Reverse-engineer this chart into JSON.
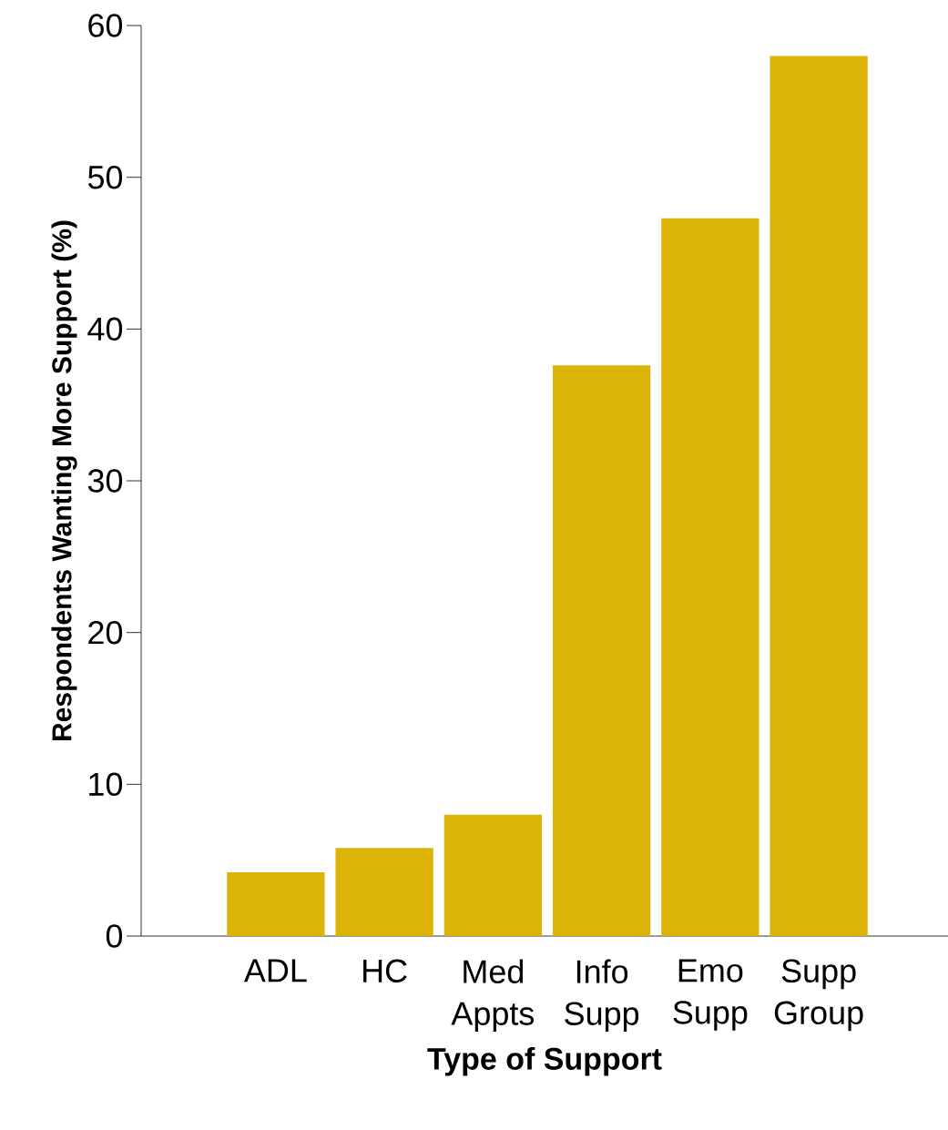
{
  "chart_data": {
    "type": "bar",
    "xlabel": "Type of Support",
    "ylabel": "Respondents Wanting More Support (%)",
    "categories": [
      "ADL",
      "HC",
      "Med Appts",
      "Info Supp",
      "Emo Supp",
      "Supp Group"
    ],
    "values": [
      4.2,
      5.8,
      8.0,
      37.6,
      47.3,
      58.0
    ],
    "color": "#dcb408",
    "ylim": [
      0,
      60
    ],
    "yticks": [
      0,
      10,
      20,
      30,
      40,
      50,
      60
    ]
  }
}
